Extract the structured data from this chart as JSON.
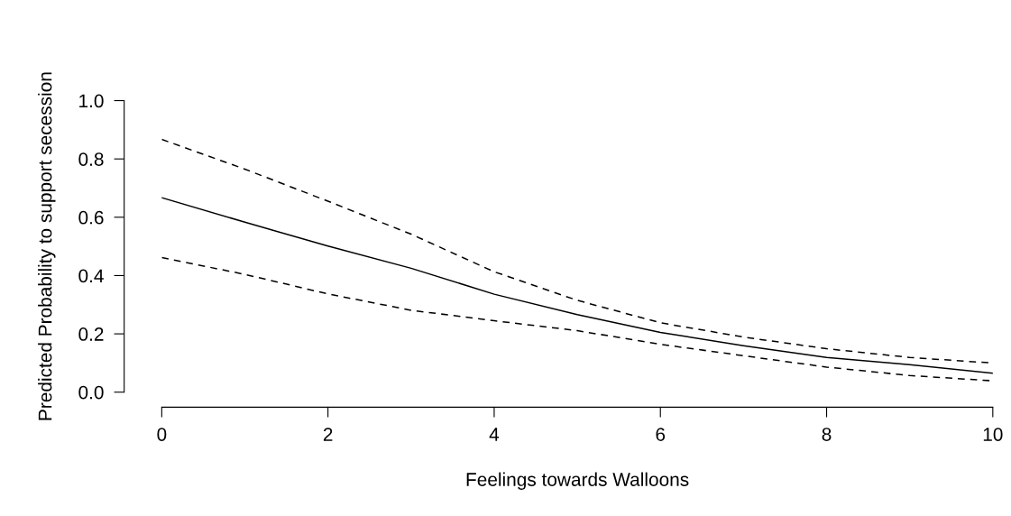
{
  "chart_data": {
    "type": "line",
    "xlabel": "Feelings towards Walloons",
    "ylabel": "Predicted Probability to support secession",
    "x": [
      0,
      1,
      2,
      3,
      4,
      5,
      6,
      7,
      8,
      9,
      10
    ],
    "series": [
      {
        "color": "#000000",
        "line_style": "solid",
        "values": [
          0.667,
          0.583,
          0.501,
          0.425,
          0.336,
          0.266,
          0.205,
          0.159,
          0.119,
          0.094,
          0.065
        ]
      },
      {
        "color": "#000000",
        "line_style": "dashed",
        "values": [
          0.867,
          0.765,
          0.655,
          0.542,
          0.413,
          0.315,
          0.238,
          0.189,
          0.149,
          0.119,
          0.1
        ]
      },
      {
        "color": "#000000",
        "line_style": "dashed",
        "values": [
          0.462,
          0.404,
          0.337,
          0.281,
          0.245,
          0.211,
          0.164,
          0.125,
          0.086,
          0.057,
          0.039
        ]
      }
    ],
    "xlim": [
      0,
      10
    ],
    "ylim": [
      0,
      1
    ],
    "xticks": [
      0,
      2,
      4,
      6,
      8,
      10
    ],
    "yticks": [
      {
        "value": 0,
        "label": "0.0"
      },
      {
        "value": 0.2,
        "label": "0.2"
      },
      {
        "value": 0.4,
        "label": "0.4"
      },
      {
        "value": 0.6,
        "label": "0.6"
      },
      {
        "value": 0.8,
        "label": "0.8"
      },
      {
        "value": 1,
        "label": "1.0"
      }
    ],
    "grid": false,
    "legend": false
  }
}
